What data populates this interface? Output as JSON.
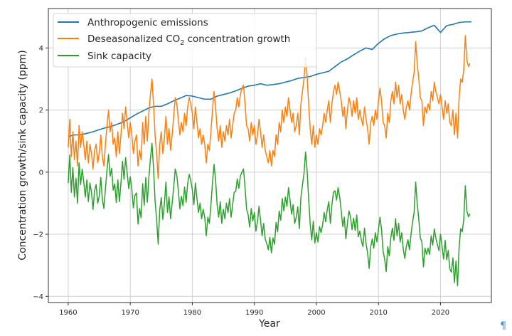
{
  "chart_data": {
    "type": "line",
    "title": "",
    "xlabel": "Year",
    "ylabel": "Concentration growth/sink capacity  (ppm)",
    "xlim": [
      1956.8,
      2028.2
    ],
    "ylim": [
      -4.2,
      5.27
    ],
    "xticks": [
      1960,
      1970,
      1980,
      1990,
      2000,
      2010,
      2020
    ],
    "xtick_labels": [
      "1960",
      "1970",
      "1980",
      "1990",
      "2000",
      "2010",
      "2020"
    ],
    "yticks": [
      -4,
      -2,
      0,
      2,
      4
    ],
    "ytick_labels": [
      "−4",
      "−2",
      "0",
      "2",
      "4"
    ],
    "grid": true,
    "legend_position": "top-left",
    "series": [
      {
        "name": "Anthropogenic emissions",
        "legend_label": "Anthropogenic emissions",
        "color": "#1f77b4",
        "x_start": 1960,
        "x_step": 1,
        "values": [
          1.15,
          1.2,
          1.2,
          1.25,
          1.3,
          1.37,
          1.43,
          1.48,
          1.55,
          1.63,
          1.75,
          1.87,
          1.97,
          2.07,
          2.12,
          2.12,
          2.2,
          2.3,
          2.38,
          2.47,
          2.45,
          2.4,
          2.35,
          2.35,
          2.45,
          2.5,
          2.55,
          2.62,
          2.7,
          2.77,
          2.8,
          2.85,
          2.8,
          2.82,
          2.85,
          2.9,
          2.95,
          3.02,
          3.05,
          3.08,
          3.15,
          3.2,
          3.25,
          3.4,
          3.55,
          3.65,
          3.78,
          3.9,
          4.0,
          3.95,
          4.15,
          4.3,
          4.4,
          4.45,
          4.48,
          4.5,
          4.52,
          4.55,
          4.65,
          4.73,
          4.5,
          4.72,
          4.76,
          4.82,
          4.84,
          4.84
        ]
      },
      {
        "name": "Deseasonalized CO2 concentration growth",
        "legend_label": "Deseasonalized CO",
        "legend_sub": "2",
        "legend_suffix": " concentration growth",
        "color": "#ff7f0e",
        "x_start": 1960,
        "x_step": 0.25,
        "values": [
          0.8,
          1.7,
          0.5,
          1.3,
          0.4,
          1.0,
          0.2,
          1.5,
          0.8,
          1.3,
          0.9,
          0.4,
          1.0,
          0.3,
          0.9,
          0.6,
          0.1,
          0.7,
          0.9,
          0.3,
          0.6,
          1.2,
          0.5,
          0.2,
          0.9,
          1.5,
          2.0,
          1.3,
          1.6,
          0.9,
          1.1,
          0.5,
          1.3,
          0.6,
          1.2,
          1.9,
          1.4,
          2.1,
          1.6,
          1.1,
          1.6,
          1.2,
          0.6,
          1.0,
          1.2,
          0.2,
          0.7,
          0.4,
          1.6,
          0.9,
          1.8,
          1.0,
          1.9,
          2.5,
          3.0,
          2.2,
          1.2,
          0.6,
          -0.2,
          0.9,
          1.3,
          0.6,
          1.1,
          1.8,
          0.9,
          1.4,
          0.7,
          1.2,
          1.8,
          2.4,
          2.2,
          1.7,
          1.2,
          1.6,
          1.3,
          1.9,
          1.5,
          2.1,
          2.4,
          2.2,
          1.9,
          1.4,
          2.1,
          1.6,
          1.1,
          1.4,
          0.9,
          1.2,
          0.9,
          0.3,
          0.9,
          0.7,
          1.3,
          2.0,
          2.6,
          2.1,
          1.4,
          1.0,
          1.5,
          0.8,
          1.3,
          1.0,
          1.5,
          1.2,
          1.7,
          1.1,
          1.5,
          1.9,
          2.0,
          2.4,
          2.1,
          2.5,
          2.7,
          2.8,
          2.2,
          1.5,
          1.4,
          1.0,
          1.6,
          1.2,
          1.5,
          0.9,
          1.2,
          1.7,
          1.3,
          0.8,
          1.2,
          0.7,
          0.5,
          0.3,
          0.7,
          0.2,
          0.7,
          0.5,
          1.2,
          0.9,
          1.6,
          1.3,
          2.0,
          1.6,
          2.1,
          1.8,
          2.4,
          2.0,
          1.6,
          1.9,
          1.3,
          1.5,
          1.9,
          1.2,
          2.2,
          2.6,
          3.0,
          3.7,
          3.1,
          2.2,
          1.4,
          0.9,
          1.5,
          0.8,
          1.2,
          0.9,
          1.4,
          1.2,
          1.5,
          1.9,
          1.6,
          2.0,
          2.3,
          1.6,
          2.2,
          2.6,
          2.8,
          2.5,
          2.9,
          2.6,
          2.3,
          1.8,
          2.1,
          1.4,
          2.0,
          2.4,
          2.2,
          1.8,
          2.3,
          1.9,
          2.4,
          1.7,
          2.0,
          1.7,
          1.5,
          2.1,
          1.7,
          1.4,
          0.9,
          1.6,
          1.8,
          1.5,
          2.0,
          1.7,
          2.3,
          2.7,
          2.3,
          1.6,
          1.5,
          1.1,
          1.9,
          1.6,
          2.3,
          2.6,
          2.2,
          2.9,
          2.4,
          2.8,
          2.2,
          2.5,
          2.0,
          1.7,
          2.1,
          2.3,
          2.0,
          2.5,
          2.9,
          3.2,
          4.2,
          3.5,
          3.0,
          2.4,
          2.3,
          1.5,
          2.1,
          1.9,
          2.2,
          2.0,
          2.6,
          2.3,
          2.9,
          2.6,
          2.4,
          2.2,
          2.5,
          2.1,
          1.7,
          2.3,
          1.9,
          2.2,
          1.6,
          1.5,
          2.0,
          1.2,
          1.9,
          1.1,
          2.4,
          3.0,
          2.9,
          3.3,
          4.4,
          3.6,
          3.4,
          3.5
        ]
      },
      {
        "name": "Sink capacity",
        "legend_label": "Sink capacity",
        "color": "#2ca02c",
        "x_start": 1960,
        "x_step": 0.25,
        "values": [
          -0.35,
          0.55,
          -0.65,
          0.15,
          -0.8,
          -0.2,
          -1.0,
          0.3,
          -0.4,
          0.1,
          -0.3,
          -0.8,
          -0.25,
          -0.95,
          -0.35,
          -0.65,
          -1.2,
          -0.6,
          -0.4,
          -1.0,
          -0.77,
          -0.17,
          -0.87,
          -1.17,
          -0.53,
          0.07,
          0.57,
          -0.13,
          0.12,
          -0.58,
          -0.38,
          -0.98,
          -0.25,
          -0.95,
          -0.35,
          0.35,
          -0.23,
          0.47,
          -0.03,
          -0.53,
          -0.15,
          -0.55,
          -1.15,
          -0.75,
          -0.67,
          -1.67,
          -1.17,
          -1.47,
          -0.37,
          -1.07,
          -0.17,
          -0.97,
          -0.17,
          0.43,
          0.93,
          0.13,
          -0.92,
          -1.52,
          -2.32,
          -1.22,
          -0.82,
          -1.52,
          -1.02,
          -0.32,
          -1.3,
          -0.8,
          -1.5,
          -1.0,
          -0.5,
          0.1,
          -0.1,
          -0.6,
          -1.18,
          -0.78,
          -1.08,
          -0.48,
          -0.97,
          -0.37,
          -0.07,
          -0.27,
          -0.55,
          -1.05,
          -0.35,
          -0.85,
          -1.3,
          -1.0,
          -1.5,
          -1.2,
          -1.45,
          -2.05,
          -1.45,
          -1.65,
          -1.05,
          -0.35,
          0.25,
          -0.25,
          -1.05,
          -1.45,
          -0.95,
          -1.65,
          -1.2,
          -1.5,
          -1.0,
          -1.3,
          -0.85,
          -1.45,
          -1.05,
          -0.65,
          -0.62,
          -0.22,
          -0.52,
          -0.12,
          0.0,
          0.1,
          -0.5,
          -1.2,
          -1.37,
          -1.77,
          -1.17,
          -1.57,
          -1.3,
          -1.9,
          -1.6,
          -1.1,
          -1.55,
          -2.05,
          -1.65,
          -2.15,
          -2.3,
          -2.5,
          -2.1,
          -2.6,
          -2.12,
          -2.32,
          -1.62,
          -1.92,
          -1.25,
          -1.55,
          -0.85,
          -1.25,
          -0.8,
          -1.1,
          -0.5,
          -0.9,
          -1.35,
          -1.05,
          -1.65,
          -1.45,
          -1.12,
          -1.82,
          -0.82,
          -0.42,
          -0.05,
          0.65,
          0.05,
          -0.85,
          -1.68,
          -2.18,
          -1.58,
          -2.28,
          -1.95,
          -2.25,
          -1.75,
          -1.95,
          -1.7,
          -1.3,
          -1.6,
          -1.2,
          -0.95,
          -1.65,
          -1.05,
          -0.65,
          -0.6,
          -0.9,
          -0.5,
          -0.8,
          -1.25,
          -1.75,
          -1.45,
          -2.15,
          -1.65,
          -1.25,
          -1.45,
          -1.85,
          -1.48,
          -1.88,
          -1.38,
          -2.08,
          -1.9,
          -2.2,
          -2.4,
          -1.8,
          -2.3,
          -2.6,
          -3.1,
          -2.4,
          -2.15,
          -2.45,
          -1.95,
          -2.25,
          -1.85,
          -1.45,
          -1.85,
          -2.55,
          -2.8,
          -3.2,
          -2.4,
          -2.7,
          -2.1,
          -1.8,
          -2.2,
          -1.5,
          -2.05,
          -1.65,
          -2.25,
          -1.95,
          -2.48,
          -2.78,
          -2.38,
          -2.18,
          -2.5,
          -2.0,
          -1.6,
          -1.3,
          -0.32,
          -1.02,
          -1.52,
          -2.12,
          -2.25,
          -3.05,
          -2.45,
          -2.65,
          -2.45,
          -2.65,
          -2.05,
          -2.35,
          -1.83,
          -2.13,
          -2.33,
          -2.53,
          -2.0,
          -2.4,
          -2.8,
          -2.2,
          -2.82,
          -2.52,
          -3.12,
          -3.22,
          -2.76,
          -3.56,
          -2.86,
          -3.66,
          -2.42,
          -1.82,
          -1.92,
          -1.52,
          -0.44,
          -1.24,
          -1.44,
          -1.34
        ]
      }
    ]
  },
  "page": {
    "pilcrow": "¶"
  }
}
